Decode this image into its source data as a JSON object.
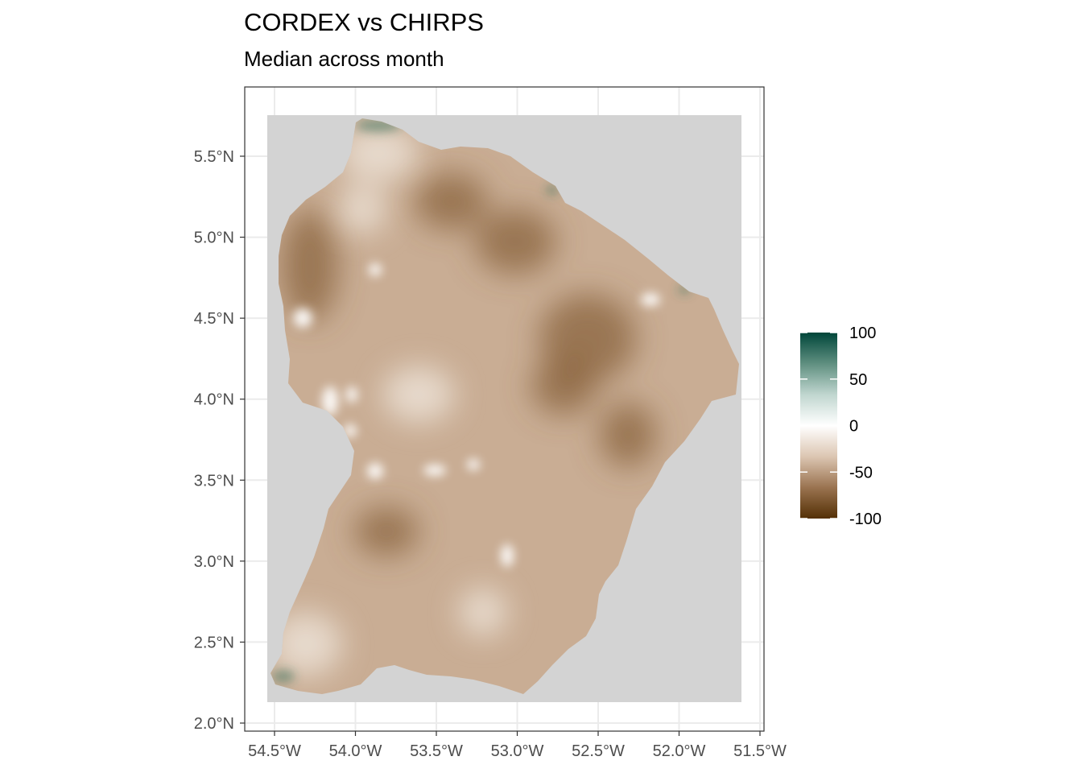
{
  "title": "CORDEX vs CHIRPS",
  "subtitle": "Median across month",
  "map": {
    "x_axis": {
      "range": [
        -54.5,
        -51.5
      ],
      "ticks": [
        {
          "value": -54.5,
          "label": "54.5°W"
        },
        {
          "value": -54.0,
          "label": "54.0°W"
        },
        {
          "value": -53.5,
          "label": "53.5°W"
        },
        {
          "value": -53.0,
          "label": "53.0°W"
        },
        {
          "value": -52.5,
          "label": "52.5°W"
        },
        {
          "value": -52.0,
          "label": "52.0°W"
        },
        {
          "value": -51.5,
          "label": "51.5°W"
        }
      ]
    },
    "y_axis": {
      "range": [
        2.0,
        5.5
      ],
      "ticks": [
        {
          "value": 5.5,
          "label": "5.5°N"
        },
        {
          "value": 5.0,
          "label": "5.0°N"
        },
        {
          "value": 4.5,
          "label": "4.5°N"
        },
        {
          "value": 4.0,
          "label": "4.0°N"
        },
        {
          "value": 3.5,
          "label": "3.5°N"
        },
        {
          "value": 3.0,
          "label": "3.0°N"
        },
        {
          "value": 2.5,
          "label": "2.5°N"
        },
        {
          "value": 2.0,
          "label": "2.0°N"
        }
      ]
    },
    "grid": true,
    "background_color": "#d3d3d3",
    "region_fill_color": "#c9ad94",
    "dark_patch_color": "#8a633f",
    "light_patch_color": "#f4ece4",
    "positive_color": "#2f6e5a"
  },
  "legend": {
    "placement": "right",
    "scale": "diverging",
    "min": -100,
    "max": 100,
    "colors": [
      "#543005",
      "#9a7350",
      "#dcc6b2",
      "#ffffff",
      "#c0d6cf",
      "#5f8f80",
      "#00463a"
    ],
    "ticks": [
      {
        "value": 100,
        "label": "100"
      },
      {
        "value": 50,
        "label": "50"
      },
      {
        "value": 0,
        "label": "0"
      },
      {
        "value": -50,
        "label": "-50"
      },
      {
        "value": -100,
        "label": "-100"
      }
    ]
  }
}
